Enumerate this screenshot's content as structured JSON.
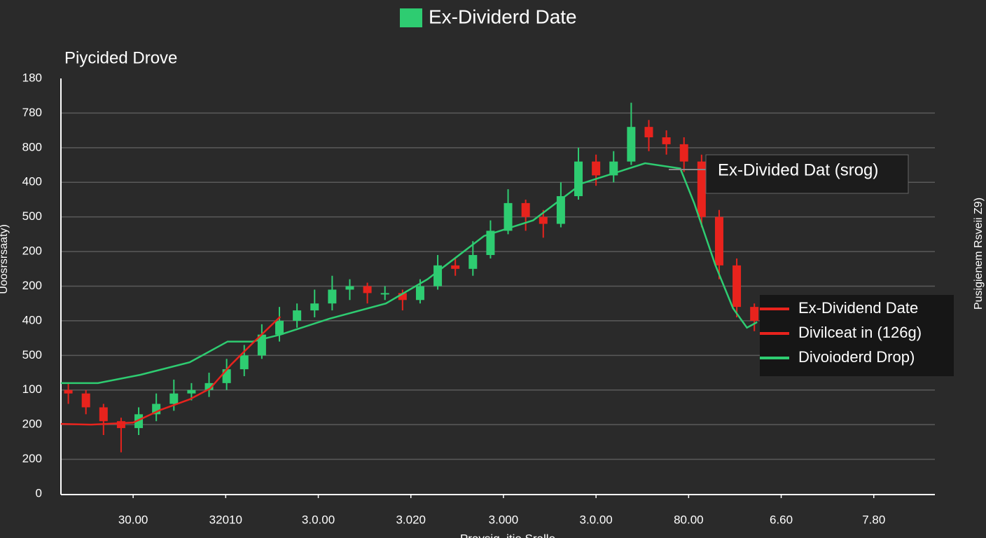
{
  "chart_data": {
    "type": "candlestick",
    "title": "Ex-Dividerd Date",
    "subtitle": "Piycided Drove",
    "y_label": "Uoosrsrsaaty)",
    "y2_label": "Pusigienem Rsveii Z9)",
    "x_label": "Pravsig ,itie Sralle",
    "grid": true,
    "ylim": [
      0,
      12
    ],
    "yticks": [
      0,
      {
        "value": 1,
        "label": "200"
      },
      {
        "value": 2,
        "label": "200"
      },
      {
        "value": 3,
        "label": "100"
      },
      {
        "value": 4,
        "label": "500"
      },
      {
        "value": 5,
        "label": "400"
      },
      {
        "value": 6,
        "label": "200"
      },
      {
        "value": 7,
        "label": "200"
      },
      {
        "value": 8,
        "label": "500"
      },
      {
        "value": 9,
        "label": "400"
      },
      {
        "value": 10,
        "label": "800"
      },
      {
        "value": 11,
        "label": "780"
      },
      {
        "value": 12,
        "label": "180"
      }
    ],
    "xlim": [
      0.22,
      9.66
    ],
    "xticks": [
      {
        "value": 1,
        "label": "30.00"
      },
      {
        "value": 2,
        "label": "32010"
      },
      {
        "value": 3,
        "label": "3.0.00"
      },
      {
        "value": 4,
        "label": "3.020"
      },
      {
        "value": 5,
        "label": "3.000"
      },
      {
        "value": 6,
        "label": "3.0.00"
      },
      {
        "value": 7,
        "label": "80.00"
      },
      {
        "value": 8,
        "label": "6.60"
      },
      {
        "value": 9,
        "label": "7.80"
      }
    ],
    "up_color": "#2ecc71",
    "down_color": "#e8231d",
    "candles": {
      "x": [
        0.3,
        0.49,
        0.68,
        0.87,
        1.06,
        1.25,
        1.44,
        1.63,
        1.82,
        2.01,
        2.2,
        2.39,
        2.58,
        2.77,
        2.96,
        3.15,
        3.34,
        3.53,
        3.72,
        3.91,
        4.1,
        4.29,
        4.48,
        4.67,
        4.86,
        5.05,
        5.24,
        5.43,
        5.62,
        5.81,
        6.0,
        6.19,
        6.38,
        6.57,
        6.76,
        6.95,
        7.14,
        7.33,
        7.52,
        7.71
      ],
      "open": [
        3.0,
        2.9,
        2.5,
        2.1,
        1.9,
        2.3,
        2.6,
        2.9,
        3.0,
        3.2,
        3.6,
        4.0,
        4.6,
        5.0,
        5.3,
        5.5,
        5.9,
        6.0,
        5.8,
        5.8,
        5.6,
        6.0,
        6.6,
        6.5,
        6.9,
        7.6,
        8.4,
        8.0,
        7.8,
        8.6,
        9.6,
        9.2,
        9.6,
        10.6,
        10.3,
        10.1,
        9.6,
        8.0,
        6.6,
        5.4
      ],
      "high": [
        3.2,
        3.0,
        2.6,
        2.2,
        2.5,
        2.9,
        3.3,
        3.2,
        3.5,
        3.9,
        4.3,
        4.9,
        5.4,
        5.5,
        5.9,
        6.3,
        6.2,
        6.1,
        6.0,
        5.9,
        6.2,
        6.9,
        6.8,
        7.3,
        7.9,
        8.8,
        8.5,
        8.2,
        9.0,
        10.0,
        9.8,
        9.9,
        11.3,
        10.8,
        10.5,
        10.3,
        9.8,
        8.2,
        6.8,
        5.5
      ],
      "low": [
        2.6,
        2.3,
        1.7,
        1.2,
        1.7,
        2.1,
        2.4,
        2.7,
        2.8,
        3.0,
        3.4,
        3.9,
        4.4,
        4.8,
        5.1,
        5.3,
        5.6,
        5.5,
        5.6,
        5.3,
        5.5,
        5.9,
        6.3,
        6.3,
        6.8,
        7.5,
        7.6,
        7.4,
        7.7,
        8.5,
        8.9,
        9.0,
        9.5,
        9.9,
        9.8,
        9.3,
        7.7,
        6.2,
        5.1,
        4.7
      ],
      "close": [
        2.9,
        2.5,
        2.1,
        1.9,
        2.3,
        2.6,
        2.9,
        3.0,
        3.2,
        3.6,
        4.0,
        4.6,
        5.0,
        5.3,
        5.5,
        5.9,
        6.0,
        5.8,
        5.8,
        5.6,
        6.0,
        6.6,
        6.5,
        6.9,
        7.6,
        8.4,
        8.0,
        7.8,
        8.6,
        9.6,
        9.2,
        9.6,
        10.6,
        10.3,
        10.1,
        9.6,
        8.0,
        6.6,
        5.4,
        5.0
      ]
    },
    "lines": [
      {
        "color": "#2ecc71",
        "x": [
          0.22,
          0.62,
          1.08,
          1.61,
          2.02,
          2.29,
          2.59,
          3.12,
          3.73,
          4.18,
          4.79,
          5.32,
          5.85,
          6.53,
          6.91,
          7.06,
          7.29,
          7.48,
          7.63,
          7.74
        ],
        "values": [
          3.2,
          3.2,
          3.44,
          3.8,
          4.4,
          4.4,
          4.6,
          5.06,
          5.5,
          6.2,
          7.45,
          7.9,
          8.97,
          9.55,
          9.4,
          8.4,
          6.6,
          5.36,
          4.8,
          4.96
        ]
      },
      {
        "color": "#e8231d",
        "x": [
          0.22,
          0.55,
          1.0,
          1.3,
          1.61,
          1.83,
          2.06,
          2.29,
          2.59
        ],
        "values": [
          2.02,
          2.0,
          2.06,
          2.43,
          2.73,
          3.04,
          3.74,
          4.35,
          5.12
        ]
      }
    ],
    "annotation": "Ex-Divided Dat (srog)",
    "legend": [
      {
        "label": "Ex-Dividend Date",
        "color": "#e8231d"
      },
      {
        "label": "Divilceat in (126g)",
        "color": "#e8231d"
      },
      {
        "label": "Divoioderd Drop)",
        "color": "#2ecc71"
      }
    ]
  }
}
